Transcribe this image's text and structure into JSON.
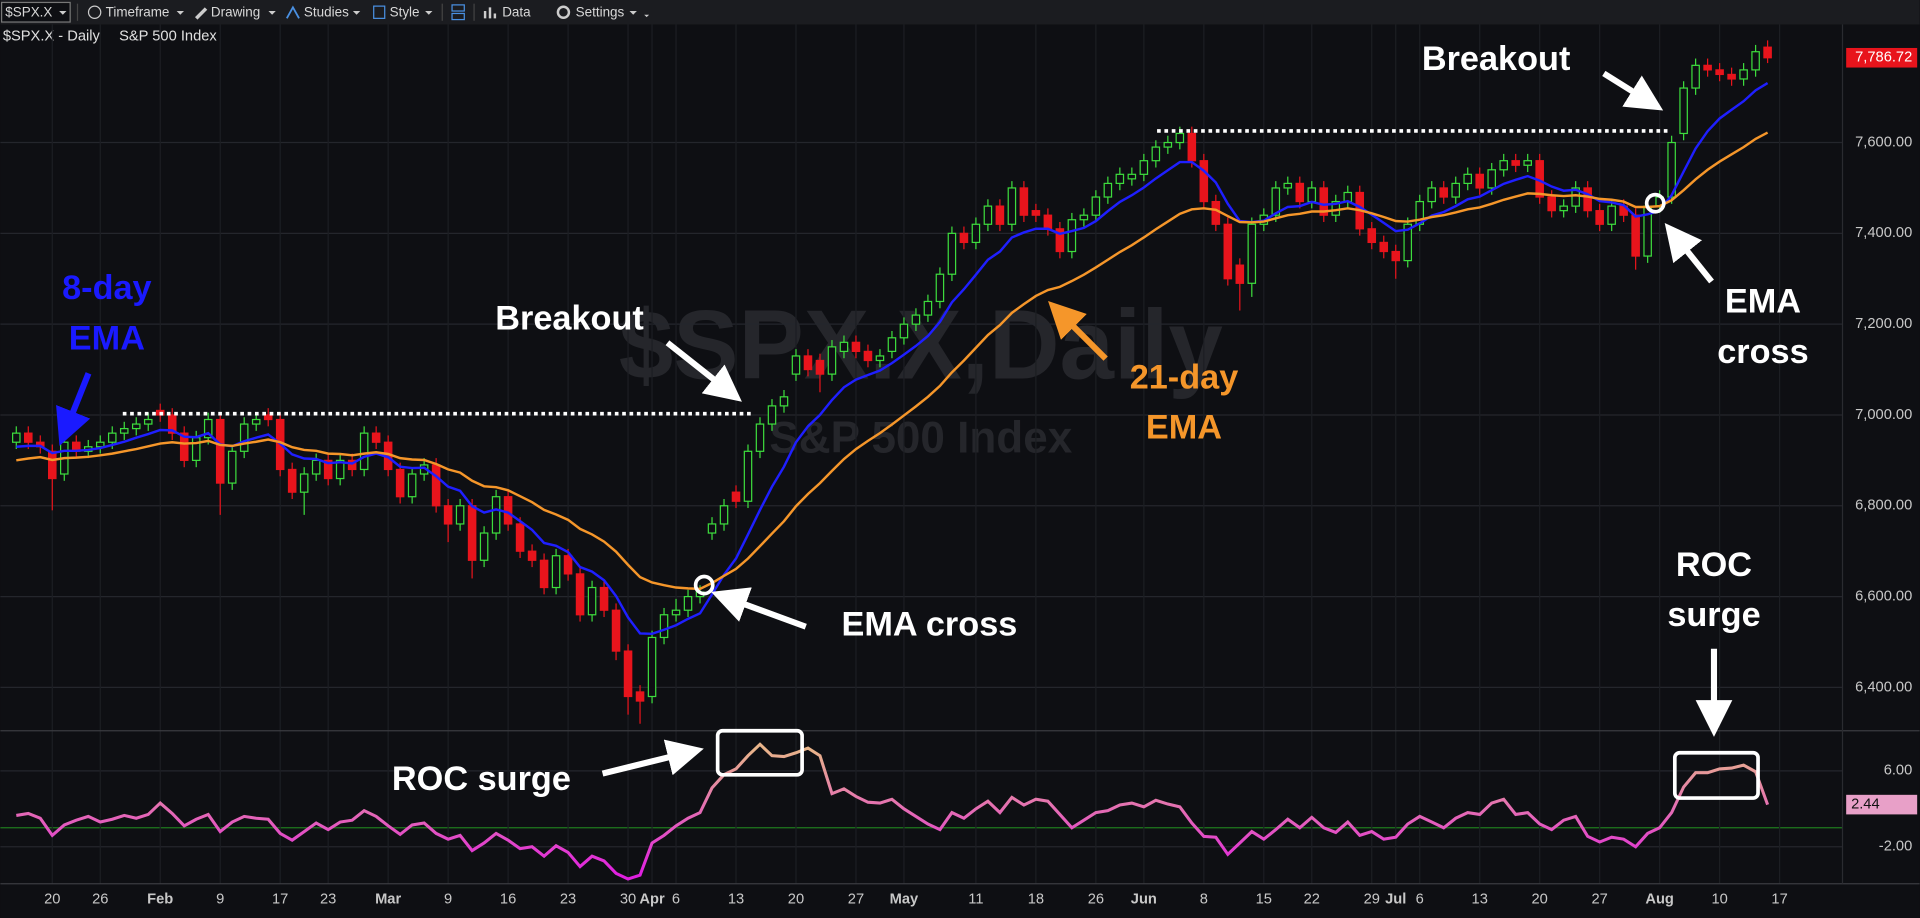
{
  "toolbar": {
    "symbol": "$SPX.X",
    "items": [
      "Timeframe",
      "Drawing",
      "Studies",
      "Style",
      "Data",
      "Settings"
    ]
  },
  "chart_data": {
    "type": "candlestick",
    "title": "$SPX.X - Daily",
    "subtitle": "S&P 500 Index",
    "watermark": "$SPX.X,Daily",
    "categories": [
      null,
      null,
      null,
      "20",
      null,
      null,
      null,
      "26",
      null,
      null,
      null,
      null,
      "Feb",
      null,
      null,
      null,
      null,
      "9",
      null,
      null,
      null,
      null,
      "17",
      null,
      null,
      null,
      "23",
      null,
      null,
      null,
      null,
      "Mar",
      null,
      null,
      null,
      null,
      "9",
      null,
      null,
      null,
      null,
      "16",
      null,
      null,
      null,
      null,
      "23",
      null,
      null,
      null,
      null,
      "30",
      null,
      "Apr",
      null,
      "6",
      null,
      null,
      null,
      null,
      "13",
      null,
      null,
      null,
      null,
      "20",
      null,
      null,
      null,
      null,
      "27",
      null,
      null,
      null,
      "May",
      null,
      null,
      null,
      null,
      null,
      "11",
      null,
      null,
      null,
      null,
      "18",
      null,
      null,
      null,
      null,
      "26",
      null,
      null,
      null,
      "Jun",
      null,
      null,
      null,
      null,
      "8",
      null,
      null,
      null,
      null,
      "15",
      null,
      null,
      null,
      "22",
      null,
      null,
      null,
      null,
      "29",
      null,
      "Jul",
      null,
      "6",
      null,
      null,
      null,
      null,
      "13",
      null,
      null,
      null,
      null,
      "20",
      null,
      null,
      null,
      null,
      "27",
      null,
      null,
      null,
      null,
      "Aug",
      null,
      null,
      null,
      null,
      "10",
      null,
      null,
      null,
      null,
      "17"
    ],
    "open": [
      6940,
      6960,
      6940,
      6920,
      6870,
      6940,
      6920,
      6930,
      6940,
      6960,
      6970,
      6980,
      7010,
      7000,
      6960,
      6900,
      6950,
      6990,
      6850,
      6920,
      6980,
      7000,
      6990,
      6880,
      6830,
      6870,
      6900,
      6860,
      6900,
      6880,
      6960,
      6940,
      6880,
      6820,
      6870,
      6890,
      6800,
      6760,
      6800,
      6680,
      6740,
      6820,
      6760,
      6700,
      6680,
      6620,
      6690,
      6650,
      6560,
      6620,
      6570,
      6480,
      6390,
      6380,
      6510,
      6560,
      6570,
      6600,
      6740,
      6760,
      6830,
      6810,
      6920,
      6980,
      7020,
      7090,
      7130,
      7120,
      7090,
      7140,
      7160,
      7140,
      7120,
      7140,
      7170,
      7200,
      7220,
      7250,
      7310,
      7400,
      7380,
      7420,
      7460,
      7420,
      7500,
      7450,
      7440,
      7410,
      7360,
      7430,
      7440,
      7480,
      7510,
      7520,
      7530,
      7560,
      7590,
      7600,
      7620,
      7560,
      7470,
      7420,
      7330,
      7290,
      7420,
      7440,
      7500,
      7510,
      7470,
      7500,
      7440,
      7470,
      7490,
      7410,
      7380,
      7360,
      7340,
      7420,
      7470,
      7500,
      7480,
      7510,
      7530,
      7500,
      7540,
      7560,
      7550,
      7560,
      7480,
      7450,
      7460,
      7500,
      7450,
      7420,
      7460,
      7440,
      7350,
      7460,
      7480,
      7620,
      7720,
      7770,
      7760,
      7750,
      7740,
      7760,
      7810,
      null
    ],
    "high": [
      6975,
      6975,
      6955,
      6935,
      6955,
      6955,
      6945,
      6955,
      6975,
      6985,
      6995,
      7005,
      7025,
      7015,
      6975,
      6965,
      7005,
      7005,
      6935,
      6995,
      7005,
      7015,
      7005,
      6895,
      6885,
      6915,
      6915,
      6915,
      6915,
      6975,
      6975,
      6955,
      6895,
      6885,
      6905,
      6905,
      6815,
      6815,
      6815,
      6755,
      6835,
      6835,
      6775,
      6715,
      6695,
      6705,
      6705,
      6665,
      6635,
      6635,
      6585,
      6495,
      6405,
      6525,
      6575,
      6595,
      6615,
      6625,
      6775,
      6815,
      6845,
      6935,
      6995,
      7035,
      7055,
      7145,
      7145,
      7135,
      7165,
      7175,
      7175,
      7155,
      7145,
      7185,
      7215,
      7235,
      7265,
      7325,
      7415,
      7415,
      7435,
      7475,
      7475,
      7515,
      7515,
      7465,
      7455,
      7425,
      7445,
      7455,
      7495,
      7525,
      7545,
      7545,
      7575,
      7605,
      7615,
      7635,
      7635,
      7575,
      7485,
      7435,
      7345,
      7435,
      7455,
      7515,
      7525,
      7525,
      7515,
      7515,
      7485,
      7505,
      7505,
      7425,
      7395,
      7375,
      7435,
      7485,
      7515,
      7515,
      7525,
      7545,
      7545,
      7555,
      7575,
      7575,
      7575,
      7575,
      7495,
      7475,
      7515,
      7515,
      7465,
      7475,
      7475,
      7455,
      7475,
      7495,
      7615,
      7735,
      7785,
      7785,
      7775,
      7765,
      7775,
      7815,
      7825,
      null
    ],
    "low": [
      6925,
      6925,
      6915,
      6790,
      6855,
      6905,
      6905,
      6915,
      6925,
      6945,
      6955,
      6965,
      6985,
      6945,
      6885,
      6885,
      6935,
      6780,
      6835,
      6905,
      6965,
      6975,
      6865,
      6815,
      6780,
      6855,
      6845,
      6845,
      6865,
      6865,
      6925,
      6865,
      6805,
      6805,
      6855,
      6785,
      6720,
      6745,
      6640,
      6665,
      6725,
      6745,
      6685,
      6665,
      6605,
      6605,
      6635,
      6545,
      6545,
      6555,
      6460,
      6340,
      6320,
      6365,
      6495,
      6545,
      6555,
      6585,
      6725,
      6745,
      6795,
      6795,
      6905,
      6965,
      7005,
      7075,
      7085,
      7050,
      7075,
      7125,
      7125,
      7105,
      7105,
      7125,
      7155,
      7185,
      7205,
      7235,
      7295,
      7365,
      7365,
      7405,
      7405,
      7405,
      7425,
      7425,
      7395,
      7345,
      7345,
      7415,
      7425,
      7465,
      7495,
      7505,
      7515,
      7545,
      7575,
      7585,
      7545,
      7455,
      7405,
      7285,
      7230,
      7260,
      7405,
      7425,
      7485,
      7455,
      7455,
      7425,
      7425,
      7455,
      7395,
      7365,
      7345,
      7300,
      7325,
      7405,
      7455,
      7465,
      7465,
      7495,
      7485,
      7485,
      7525,
      7535,
      7535,
      7465,
      7435,
      7435,
      7445,
      7435,
      7405,
      7405,
      7425,
      7320,
      7335,
      7445,
      7465,
      7605,
      7705,
      7745,
      7735,
      7725,
      7725,
      7745,
      7775,
      null
    ],
    "close": [
      6960,
      6940,
      6930,
      6860,
      6940,
      6920,
      6930,
      6940,
      6960,
      6970,
      6980,
      6990,
      7000,
      6960,
      6900,
      6950,
      6990,
      6850,
      6920,
      6980,
      6990,
      6990,
      6880,
      6830,
      6870,
      6900,
      6860,
      6900,
      6880,
      6960,
      6940,
      6880,
      6820,
      6870,
      6890,
      6800,
      6760,
      6800,
      6680,
      6740,
      6820,
      6760,
      6700,
      6680,
      6620,
      6690,
      6650,
      6560,
      6620,
      6570,
      6480,
      6380,
      6370,
      6510,
      6560,
      6570,
      6600,
      6610,
      6760,
      6800,
      6810,
      6920,
      6980,
      7020,
      7040,
      7130,
      7100,
      7090,
      7150,
      7160,
      7140,
      7120,
      7130,
      7170,
      7200,
      7220,
      7250,
      7310,
      7400,
      7380,
      7420,
      7460,
      7420,
      7500,
      7440,
      7440,
      7410,
      7360,
      7430,
      7440,
      7480,
      7510,
      7530,
      7530,
      7560,
      7590,
      7600,
      7620,
      7560,
      7470,
      7420,
      7300,
      7290,
      7420,
      7440,
      7500,
      7510,
      7470,
      7500,
      7440,
      7470,
      7490,
      7410,
      7380,
      7360,
      7340,
      7420,
      7470,
      7500,
      7480,
      7510,
      7530,
      7500,
      7540,
      7560,
      7550,
      7560,
      7480,
      7450,
      7460,
      7500,
      7450,
      7420,
      7460,
      7440,
      7350,
      7460,
      7480,
      7600,
      7720,
      7770,
      7760,
      7750,
      7740,
      7760,
      7800,
      7786.72,
      null
    ],
    "last_close_label": "7,786.72",
    "up_color": "#3ddc3d",
    "down_color": "#e8141c",
    "lines": [
      {
        "color": "#1f1fff",
        "values": [
          6930,
          6932,
          6932,
          6916,
          6921,
          6921,
          6923,
          6927,
          6934,
          6941,
          6950,
          6958,
          6967,
          6966,
          6952,
          6951,
          6960,
          6935,
          6931,
          6942,
          6950,
          6957,
          6937,
          6913,
          6904,
          6903,
          6894,
          6896,
          6893,
          6908,
          6915,
          6907,
          6886,
          6883,
          6884,
          6865,
          6842,
          6833,
          6799,
          6785,
          6792,
          6785,
          6766,
          6747,
          6718,
          6712,
          6698,
          6665,
          6655,
          6636,
          6601,
          6554,
          6519,
          6518,
          6527,
          6537,
          6551,
          6563,
          6605,
          6648,
          6684,
          6737,
          6791,
          6842,
          6886,
          6940,
          6975,
          7000,
          7033,
          7061,
          7078,
          7088,
          7098,
          7114,
          7133,
          7152,
          7174,
          7205,
          7248,
          7277,
          7309,
          7342,
          7360,
          7391,
          7402,
          7410,
          7410,
          7399,
          7405,
          7412,
          7427,
          7449,
          7469,
          7484,
          7501,
          7521,
          7539,
          7557,
          7557,
          7538,
          7512,
          7465,
          7427,
          7425,
          7428,
          7444,
          7458,
          7460,
          7469,
          7463,
          7465,
          7471,
          7458,
          7441,
          7423,
          7405,
          7408,
          7422,
          7439,
          7447,
          7460,
          7475,
          7481,
          7495,
          7509,
          7518,
          7526,
          7516,
          7503,
          7494,
          7496,
          7486,
          7471,
          7468,
          7462,
          7437,
          7442,
          7450,
          7484,
          7536,
          7587,
          7625,
          7653,
          7672,
          7691,
          7715,
          7731,
          null
        ]
      },
      {
        "color": "#f5962a",
        "values": [
          6900,
          6904,
          6907,
          6901,
          6905,
          6906,
          6908,
          6911,
          6915,
          6920,
          6925,
          6931,
          6937,
          6940,
          6937,
          6938,
          6943,
          6934,
          6932,
          6937,
          6941,
          6946,
          6940,
          6929,
          6923,
          6921,
          6915,
          6914,
          6911,
          6915,
          6918,
          6914,
          6905,
          6902,
          6901,
          6892,
          6880,
          6873,
          6855,
          6843,
          6841,
          6834,
          6821,
          6808,
          6791,
          6781,
          6769,
          6749,
          6737,
          6721,
          6699,
          6670,
          6643,
          6631,
          6625,
          6620,
          6618,
          6617,
          6630,
          6646,
          6661,
          6684,
          6711,
          6739,
          6766,
          6799,
          6826,
          6850,
          6877,
          6903,
          6925,
          6943,
          6960,
          6979,
          6999,
          7019,
          7040,
          7064,
          7094,
          7120,
          7148,
          7176,
          7198,
          7225,
          7244,
          7262,
          7275,
          7282,
          7295,
          7309,
          7325,
          7342,
          7359,
          7374,
          7391,
          7409,
          7426,
          7443,
          7453,
          7455,
          7452,
          7438,
          7425,
          7424,
          7426,
          7433,
          7440,
          7443,
          7448,
          7448,
          7451,
          7455,
          7451,
          7444,
          7436,
          7427,
          7426,
          7430,
          7436,
          7440,
          7446,
          7453,
          7457,
          7465,
          7474,
          7481,
          7488,
          7487,
          7484,
          7482,
          7484,
          7481,
          7476,
          7474,
          7470,
          7458,
          7458,
          7460,
          7473,
          7495,
          7519,
          7540,
          7558,
          7574,
          7590,
          7608,
          7622,
          null
        ]
      }
    ],
    "ylim": [
      6310,
      7860
    ],
    "yticks": [
      {
        "value": 6400,
        "label": "6,400.00"
      },
      {
        "value": 6600,
        "label": "6,600.00"
      },
      {
        "value": 6800,
        "label": "6,800.00"
      },
      {
        "value": 7000,
        "label": "7,000.00"
      },
      {
        "value": 7200,
        "label": "7,200.00"
      },
      {
        "value": 7400,
        "label": "7,400.00"
      },
      {
        "value": 7600,
        "label": "7,600.00"
      }
    ],
    "grid": true,
    "roc": {
      "values": [
        1.3,
        1.5,
        1.0,
        -0.8,
        0.3,
        0.8,
        1.2,
        0.6,
        0.9,
        1.3,
        1.0,
        1.4,
        2.6,
        1.5,
        0.2,
        0.9,
        1.4,
        -0.4,
        0.6,
        1.2,
        1.0,
        0.9,
        -0.6,
        -1.3,
        -0.4,
        0.5,
        -0.2,
        0.6,
        0.8,
        1.8,
        1.2,
        0.2,
        -0.7,
        0.3,
        0.5,
        -0.6,
        -1.2,
        -0.8,
        -2.4,
        -1.6,
        -0.6,
        -1.3,
        -2.2,
        -2.0,
        -3.0,
        -1.9,
        -2.6,
        -4.1,
        -3.0,
        -3.5,
        -4.8,
        -5.4,
        -5.0,
        -1.6,
        -0.8,
        0.2,
        1.0,
        1.6,
        4.2,
        5.6,
        6.2,
        7.6,
        8.8,
        7.6,
        7.5,
        7.9,
        8.4,
        7.6,
        3.6,
        4.1,
        3.3,
        2.7,
        2.6,
        3.0,
        2.0,
        1.2,
        0.4,
        -0.2,
        1.6,
        1.0,
        2.0,
        2.8,
        1.6,
        3.2,
        2.4,
        3.0,
        2.8,
        1.4,
        0.0,
        0.8,
        1.6,
        1.8,
        2.4,
        2.6,
        2.2,
        2.9,
        2.5,
        2.2,
        0.5,
        -0.9,
        -1.0,
        -2.8,
        -1.6,
        -0.4,
        -1.2,
        -0.2,
        0.9,
        0.0,
        1.1,
        0.0,
        -0.5,
        0.6,
        -0.8,
        -0.4,
        -1.2,
        -1.0,
        0.4,
        1.2,
        0.6,
        0.0,
        1.0,
        1.6,
        1.4,
        2.6,
        3.0,
        1.4,
        1.6,
        0.4,
        -0.2,
        0.8,
        1.2,
        -0.9,
        -1.5,
        -1.0,
        -1.2,
        -2.0,
        -0.6,
        0.0,
        1.6,
        4.3,
        5.8,
        5.8,
        6.2,
        6.3,
        6.6,
        5.9,
        2.44,
        null
      ],
      "ylim": [
        -5.9,
        10.1
      ],
      "yticks": [
        {
          "value": 6,
          "label": "6.00"
        },
        {
          "value": -2,
          "label": "-2.00"
        }
      ],
      "colors": [
        "#e8b48a",
        "#e020e0"
      ],
      "zero_line_color": "#1e7a1e",
      "flag_color": "#e8a0c8"
    },
    "annotations": [
      {
        "lines": [
          "8-day",
          "EMA"
        ],
        "color": "#1a1aff"
      },
      {
        "lines": [
          "Breakout"
        ],
        "color": "#ffffff"
      },
      {
        "lines": [
          "21-day",
          "EMA"
        ],
        "color": "#f5962a"
      },
      {
        "lines": [
          "Breakout"
        ],
        "color": "#ffffff"
      },
      {
        "lines": [
          "EMA cross"
        ],
        "color": "#ffffff"
      },
      {
        "lines": [
          "EMA",
          "cross"
        ],
        "color": "#ffffff"
      },
      {
        "lines": [
          "ROC surge"
        ],
        "color": "#ffffff"
      },
      {
        "lines": [
          "ROC",
          "surge"
        ],
        "color": "#ffffff"
      }
    ]
  }
}
